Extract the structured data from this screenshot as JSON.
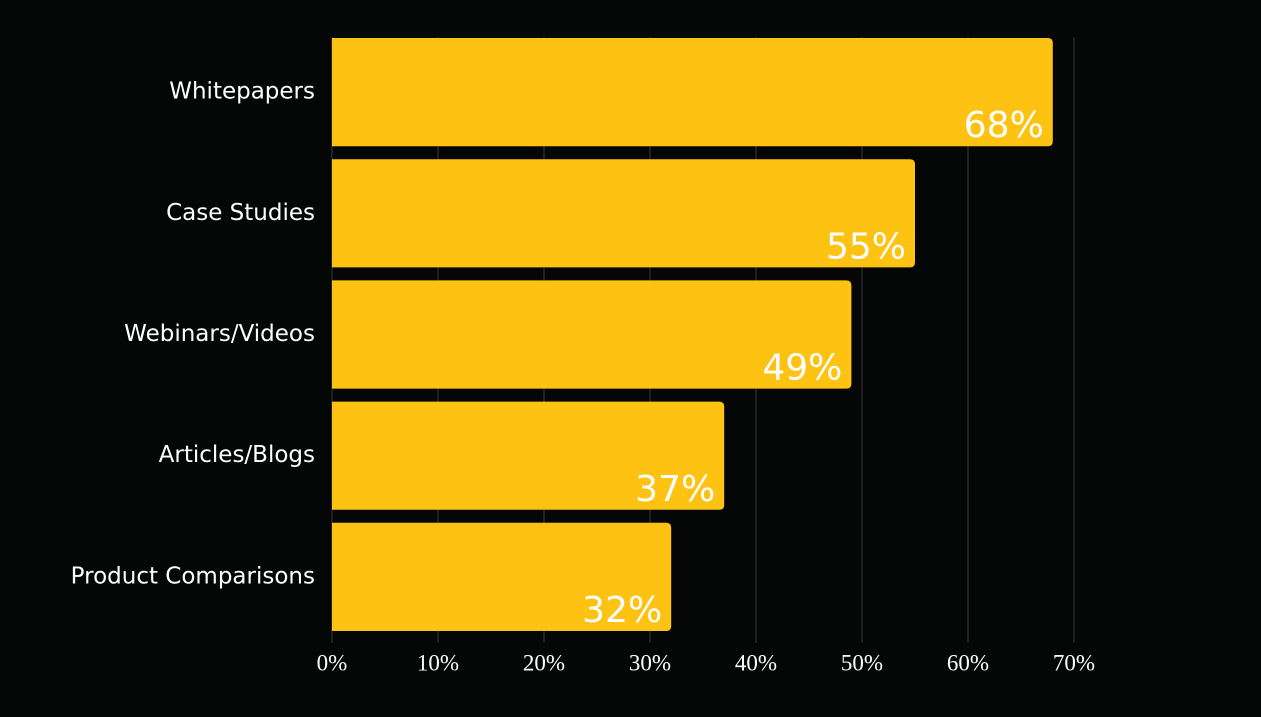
{
  "chart_data": {
    "type": "hbar",
    "categories": [
      "Whitepapers",
      "Case Studies",
      "Webinars/Videos",
      "Articles/Blogs",
      "Product Comparisons"
    ],
    "values": [
      68,
      55,
      49,
      37,
      32
    ],
    "value_labels": [
      "68%",
      "55%",
      "49%",
      "37%",
      "32%"
    ],
    "color": "#fdc212",
    "xlim": [
      0,
      70
    ],
    "xticks": [
      {
        "value": 0,
        "label": "0%"
      },
      {
        "value": 10,
        "label": "10%"
      },
      {
        "value": 20,
        "label": "20%"
      },
      {
        "value": 30,
        "label": "30%"
      },
      {
        "value": 40,
        "label": "40%"
      },
      {
        "value": 50,
        "label": "50%"
      },
      {
        "value": 60,
        "label": "60%"
      },
      {
        "value": 70,
        "label": "70%"
      }
    ],
    "grid": true
  }
}
